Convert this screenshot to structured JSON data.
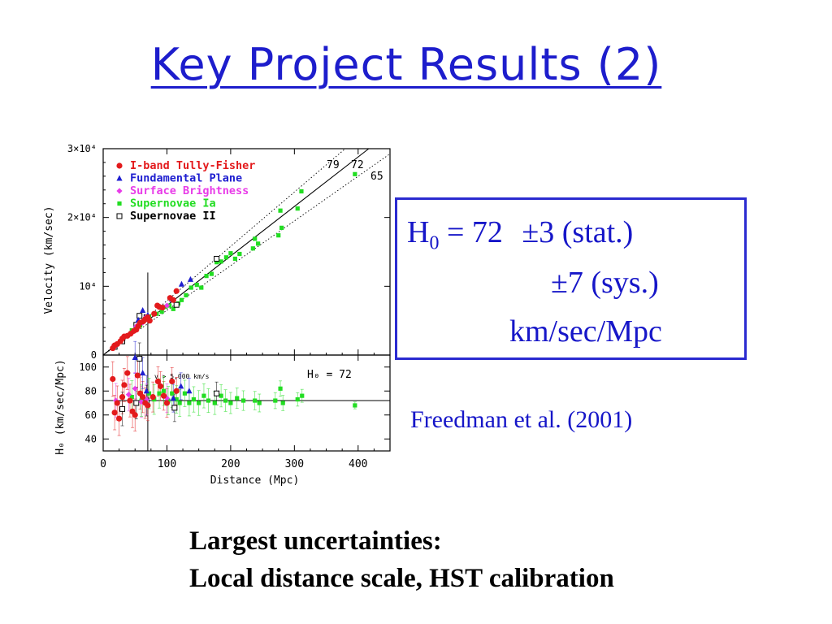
{
  "slide": {
    "title": "Key Project Results (2)",
    "result": {
      "h_symbol": "H",
      "h_subscript": "0",
      "equals_value": " = 72 ",
      "pm": "±",
      "stat": "3 (stat.)",
      "sys": "7 (sys.)",
      "units": "km/sec/Mpc"
    },
    "citation": "Freedman et al. (2001)",
    "note_line1": "Largest uncertainties:",
    "note_line2": "Local distance scale, HST calibration"
  },
  "colors": {
    "title": "#1d1dcc",
    "box_text": "#1616c8",
    "tully_fisher": "#e31a1c",
    "fundamental_plane": "#1f1fd0",
    "surface_brightness": "#e83ce8",
    "sn_ia": "#22dd22",
    "sn_ii": "#000000"
  },
  "chart_data": [
    {
      "type": "scatter",
      "panel": "top",
      "xlabel": "",
      "ylabel": "Velocity (km/sec)",
      "xlim": [
        0,
        450
      ],
      "ylim": [
        0,
        30000
      ],
      "ytick_labels": [
        "0",
        "10⁴",
        "2×10⁴",
        "3×10⁴"
      ],
      "yticks": [
        0,
        10000,
        20000,
        30000
      ],
      "lines": [
        {
          "label": "72",
          "slope": 72,
          "style": "solid"
        },
        {
          "label": "79",
          "slope": 79,
          "style": "dotted"
        },
        {
          "label": "65",
          "slope": 65,
          "style": "dotted"
        }
      ],
      "vline_x": 70,
      "legend_position": "top-left",
      "series": [
        {
          "name": "I-band Tully-Fisher",
          "marker": "circle",
          "color": "#e31a1c",
          "points": [
            [
              15,
              1000
            ],
            [
              18,
              1400
            ],
            [
              22,
              1600
            ],
            [
              27,
              2000
            ],
            [
              30,
              2400
            ],
            [
              33,
              2700
            ],
            [
              38,
              2800
            ],
            [
              43,
              3100
            ],
            [
              48,
              3500
            ],
            [
              52,
              3700
            ],
            [
              55,
              4200
            ],
            [
              58,
              4700
            ],
            [
              63,
              4900
            ],
            [
              66,
              5200
            ],
            [
              70,
              5500
            ],
            [
              73,
              5000
            ],
            [
              80,
              6000
            ],
            [
              85,
              7200
            ],
            [
              88,
              7000
            ],
            [
              93,
              6900
            ],
            [
              105,
              8300
            ],
            [
              110,
              8000
            ],
            [
              115,
              9300
            ]
          ]
        },
        {
          "name": "Fundamental Plane",
          "marker": "triangle",
          "color": "#1f1fd0",
          "points": [
            [
              55,
              5100
            ],
            [
              62,
              6500
            ],
            [
              70,
              5800
            ],
            [
              108,
              8100
            ],
            [
              123,
              10300
            ],
            [
              137,
              11000
            ]
          ]
        },
        {
          "name": "Surface Brightness",
          "marker": "diamond",
          "color": "#e83ce8",
          "points": [
            [
              20,
              1400
            ],
            [
              45,
              3200
            ],
            [
              52,
              4200
            ],
            [
              62,
              4700
            ],
            [
              67,
              5500
            ],
            [
              100,
              7200
            ]
          ]
        },
        {
          "name": "Supernovae Ia",
          "marker": "square",
          "color": "#22dd22",
          "points": [
            [
              45,
              3600
            ],
            [
              58,
              4300
            ],
            [
              72,
              5600
            ],
            [
              84,
              6000
            ],
            [
              92,
              6300
            ],
            [
              98,
              7000
            ],
            [
              104,
              7200
            ],
            [
              110,
              6700
            ],
            [
              118,
              7500
            ],
            [
              123,
              8000
            ],
            [
              130,
              8700
            ],
            [
              138,
              9800
            ],
            [
              147,
              10200
            ],
            [
              154,
              9800
            ],
            [
              162,
              11500
            ],
            [
              170,
              11800
            ],
            [
              178,
              13500
            ],
            [
              185,
              13600
            ],
            [
              193,
              14200
            ],
            [
              200,
              14800
            ],
            [
              207,
              14000
            ],
            [
              214,
              14700
            ],
            [
              235,
              15500
            ],
            [
              238,
              16900
            ],
            [
              243,
              16200
            ],
            [
              275,
              17400
            ],
            [
              278,
              21000
            ],
            [
              280,
              18500
            ],
            [
              305,
              21300
            ],
            [
              311,
              23800
            ],
            [
              395,
              26300
            ]
          ]
        },
        {
          "name": "Supernovae II",
          "marker": "open-square",
          "color": "#000000",
          "points": [
            [
              18,
              1200
            ],
            [
              30,
              2000
            ],
            [
              52,
              4400
            ],
            [
              57,
              5700
            ],
            [
              68,
              5500
            ],
            [
              115,
              7300
            ],
            [
              178,
              14000
            ]
          ]
        }
      ]
    },
    {
      "type": "scatter",
      "panel": "bottom",
      "xlabel": "Distance (Mpc)",
      "ylabel": "H₀ (km/sec/Mpc)",
      "xlim": [
        0,
        450
      ],
      "ylim": [
        30,
        110
      ],
      "xticks": [
        0,
        100,
        200,
        300,
        400
      ],
      "yticks": [
        40,
        60,
        80,
        100
      ],
      "hline_y": 72,
      "vline_x": 70,
      "annotation_label": "H₀ = 72",
      "cut_label": "v > 5,000 km/s",
      "series": [
        {
          "name": "I-band Tully-Fisher",
          "marker": "circle",
          "color": "#e31a1c",
          "points": [
            [
              15,
              90
            ],
            [
              18,
              62
            ],
            [
              22,
              70
            ],
            [
              25,
              57
            ],
            [
              30,
              75
            ],
            [
              33,
              85
            ],
            [
              38,
              95
            ],
            [
              42,
              72
            ],
            [
              46,
              63
            ],
            [
              50,
              60
            ],
            [
              54,
              93
            ],
            [
              58,
              78
            ],
            [
              62,
              75
            ],
            [
              66,
              70
            ],
            [
              70,
              68
            ],
            [
              78,
              75
            ],
            [
              86,
              88
            ],
            [
              90,
              84
            ],
            [
              95,
              76
            ],
            [
              100,
              70
            ],
            [
              108,
              88
            ],
            [
              115,
              80
            ]
          ]
        },
        {
          "name": "Fundamental Plane",
          "marker": "triangle",
          "color": "#1f1fd0",
          "points": [
            [
              50,
              108
            ],
            [
              62,
              95
            ],
            [
              68,
              80
            ],
            [
              110,
              74
            ],
            [
              122,
              84
            ],
            [
              135,
              80
            ]
          ]
        },
        {
          "name": "Surface Brightness",
          "marker": "diamond",
          "color": "#e83ce8",
          "points": [
            [
              20,
              72
            ],
            [
              40,
              77
            ],
            [
              50,
              82
            ],
            [
              60,
              71
            ],
            [
              68,
              73
            ],
            [
              100,
              74
            ]
          ]
        },
        {
          "name": "Supernovae Ia",
          "marker": "square",
          "color": "#22dd22",
          "points": [
            [
              45,
              75
            ],
            [
              60,
              72
            ],
            [
              72,
              78
            ],
            [
              80,
              73
            ],
            [
              88,
              78
            ],
            [
              95,
              80
            ],
            [
              102,
              72
            ],
            [
              108,
              78
            ],
            [
              115,
              73
            ],
            [
              120,
              70
            ],
            [
              128,
              78
            ],
            [
              135,
              70
            ],
            [
              142,
              73
            ],
            [
              150,
              70
            ],
            [
              158,
              76
            ],
            [
              165,
              72
            ],
            [
              175,
              70
            ],
            [
              185,
              76
            ],
            [
              192,
              72
            ],
            [
              200,
              70
            ],
            [
              210,
              74
            ],
            [
              220,
              72
            ],
            [
              238,
              72
            ],
            [
              245,
              70
            ],
            [
              270,
              72
            ],
            [
              278,
              82
            ],
            [
              282,
              70
            ],
            [
              305,
              73
            ],
            [
              312,
              76
            ],
            [
              395,
              68
            ]
          ]
        },
        {
          "name": "Supernovae II",
          "marker": "open-square",
          "color": "#000000",
          "points": [
            [
              30,
              65
            ],
            [
              52,
              70
            ],
            [
              57,
              107
            ],
            [
              68,
              72
            ],
            [
              112,
              66
            ],
            [
              178,
              78
            ]
          ]
        }
      ]
    }
  ]
}
